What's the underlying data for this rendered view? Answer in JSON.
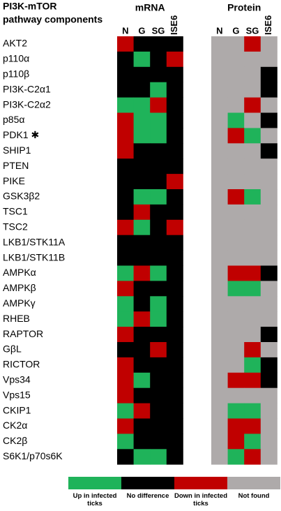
{
  "chart_data": {
    "type": "heatmap",
    "title_lines": [
      "PI3K-mTOR",
      "pathway components"
    ],
    "rows": [
      "AKT2",
      "p110α",
      "p110β",
      "PI3K-C2α1",
      "PI3K-C2α2",
      "p85α",
      "PDK1 ✱",
      "SHIP1",
      "PTEN",
      "PIKE",
      "GSK3β2",
      "TSC1",
      "TSC2",
      "LKB1/STK11A",
      "LKB1/STK11B",
      "AMPKα",
      "AMPKβ",
      "AMPKγ",
      "RHEB",
      "RAPTOR",
      "GβL",
      "RICTOR",
      "Vps34",
      "Vps15",
      "CKIP1",
      "CK2α",
      "CK2β",
      "S6K1/p70s6K"
    ],
    "legend": [
      {
        "label": "Up in infected ticks",
        "color": "#1fb35a"
      },
      {
        "label": "No difference",
        "color": "#000000"
      },
      {
        "label": "Down in infected ticks",
        "color": "#c00000"
      },
      {
        "label": "Not found",
        "color": "#aeaaaa"
      }
    ],
    "panels": [
      {
        "title": "mRNA",
        "columns": [
          "N",
          "G",
          "SG",
          "ISE6"
        ],
        "values": [
          [
            2,
            1,
            1,
            1
          ],
          [
            1,
            0,
            1,
            2
          ],
          [
            1,
            1,
            1,
            1
          ],
          [
            1,
            1,
            0,
            1
          ],
          [
            0,
            0,
            2,
            1
          ],
          [
            2,
            0,
            0,
            1
          ],
          [
            2,
            0,
            0,
            1
          ],
          [
            2,
            1,
            1,
            1
          ],
          [
            1,
            1,
            1,
            1
          ],
          [
            1,
            1,
            1,
            2
          ],
          [
            1,
            0,
            0,
            1
          ],
          [
            1,
            2,
            1,
            1
          ],
          [
            2,
            0,
            1,
            2
          ],
          [
            1,
            1,
            1,
            1
          ],
          [
            1,
            1,
            1,
            1
          ],
          [
            0,
            2,
            0,
            1
          ],
          [
            2,
            1,
            1,
            1
          ],
          [
            0,
            1,
            0,
            1
          ],
          [
            0,
            2,
            0,
            1
          ],
          [
            2,
            1,
            1,
            1
          ],
          [
            1,
            1,
            2,
            1
          ],
          [
            2,
            1,
            1,
            1
          ],
          [
            2,
            0,
            1,
            1
          ],
          [
            2,
            1,
            1,
            1
          ],
          [
            0,
            2,
            1,
            1
          ],
          [
            2,
            1,
            1,
            1
          ],
          [
            0,
            1,
            1,
            1
          ],
          [
            1,
            0,
            0,
            1
          ]
        ]
      },
      {
        "title": "Protein",
        "columns": [
          "N",
          "G",
          "SG",
          "ISE6"
        ],
        "values": [
          [
            3,
            3,
            2,
            3
          ],
          [
            3,
            3,
            3,
            3
          ],
          [
            3,
            3,
            3,
            1
          ],
          [
            3,
            3,
            3,
            1
          ],
          [
            3,
            3,
            2,
            3
          ],
          [
            3,
            0,
            3,
            1
          ],
          [
            3,
            2,
            0,
            3
          ],
          [
            3,
            3,
            3,
            1
          ],
          [
            3,
            3,
            3,
            3
          ],
          [
            3,
            3,
            3,
            3
          ],
          [
            3,
            2,
            0,
            3
          ],
          [
            3,
            3,
            3,
            3
          ],
          [
            3,
            3,
            3,
            3
          ],
          [
            3,
            3,
            3,
            3
          ],
          [
            3,
            3,
            3,
            3
          ],
          [
            3,
            2,
            2,
            1
          ],
          [
            3,
            0,
            0,
            3
          ],
          [
            3,
            3,
            3,
            3
          ],
          [
            3,
            3,
            3,
            3
          ],
          [
            3,
            3,
            3,
            1
          ],
          [
            3,
            3,
            2,
            3
          ],
          [
            3,
            3,
            0,
            1
          ],
          [
            3,
            2,
            2,
            1
          ],
          [
            3,
            3,
            3,
            3
          ],
          [
            3,
            0,
            0,
            3
          ],
          [
            3,
            2,
            2,
            3
          ],
          [
            3,
            2,
            0,
            3
          ],
          [
            3,
            0,
            2,
            3
          ]
        ]
      }
    ]
  }
}
